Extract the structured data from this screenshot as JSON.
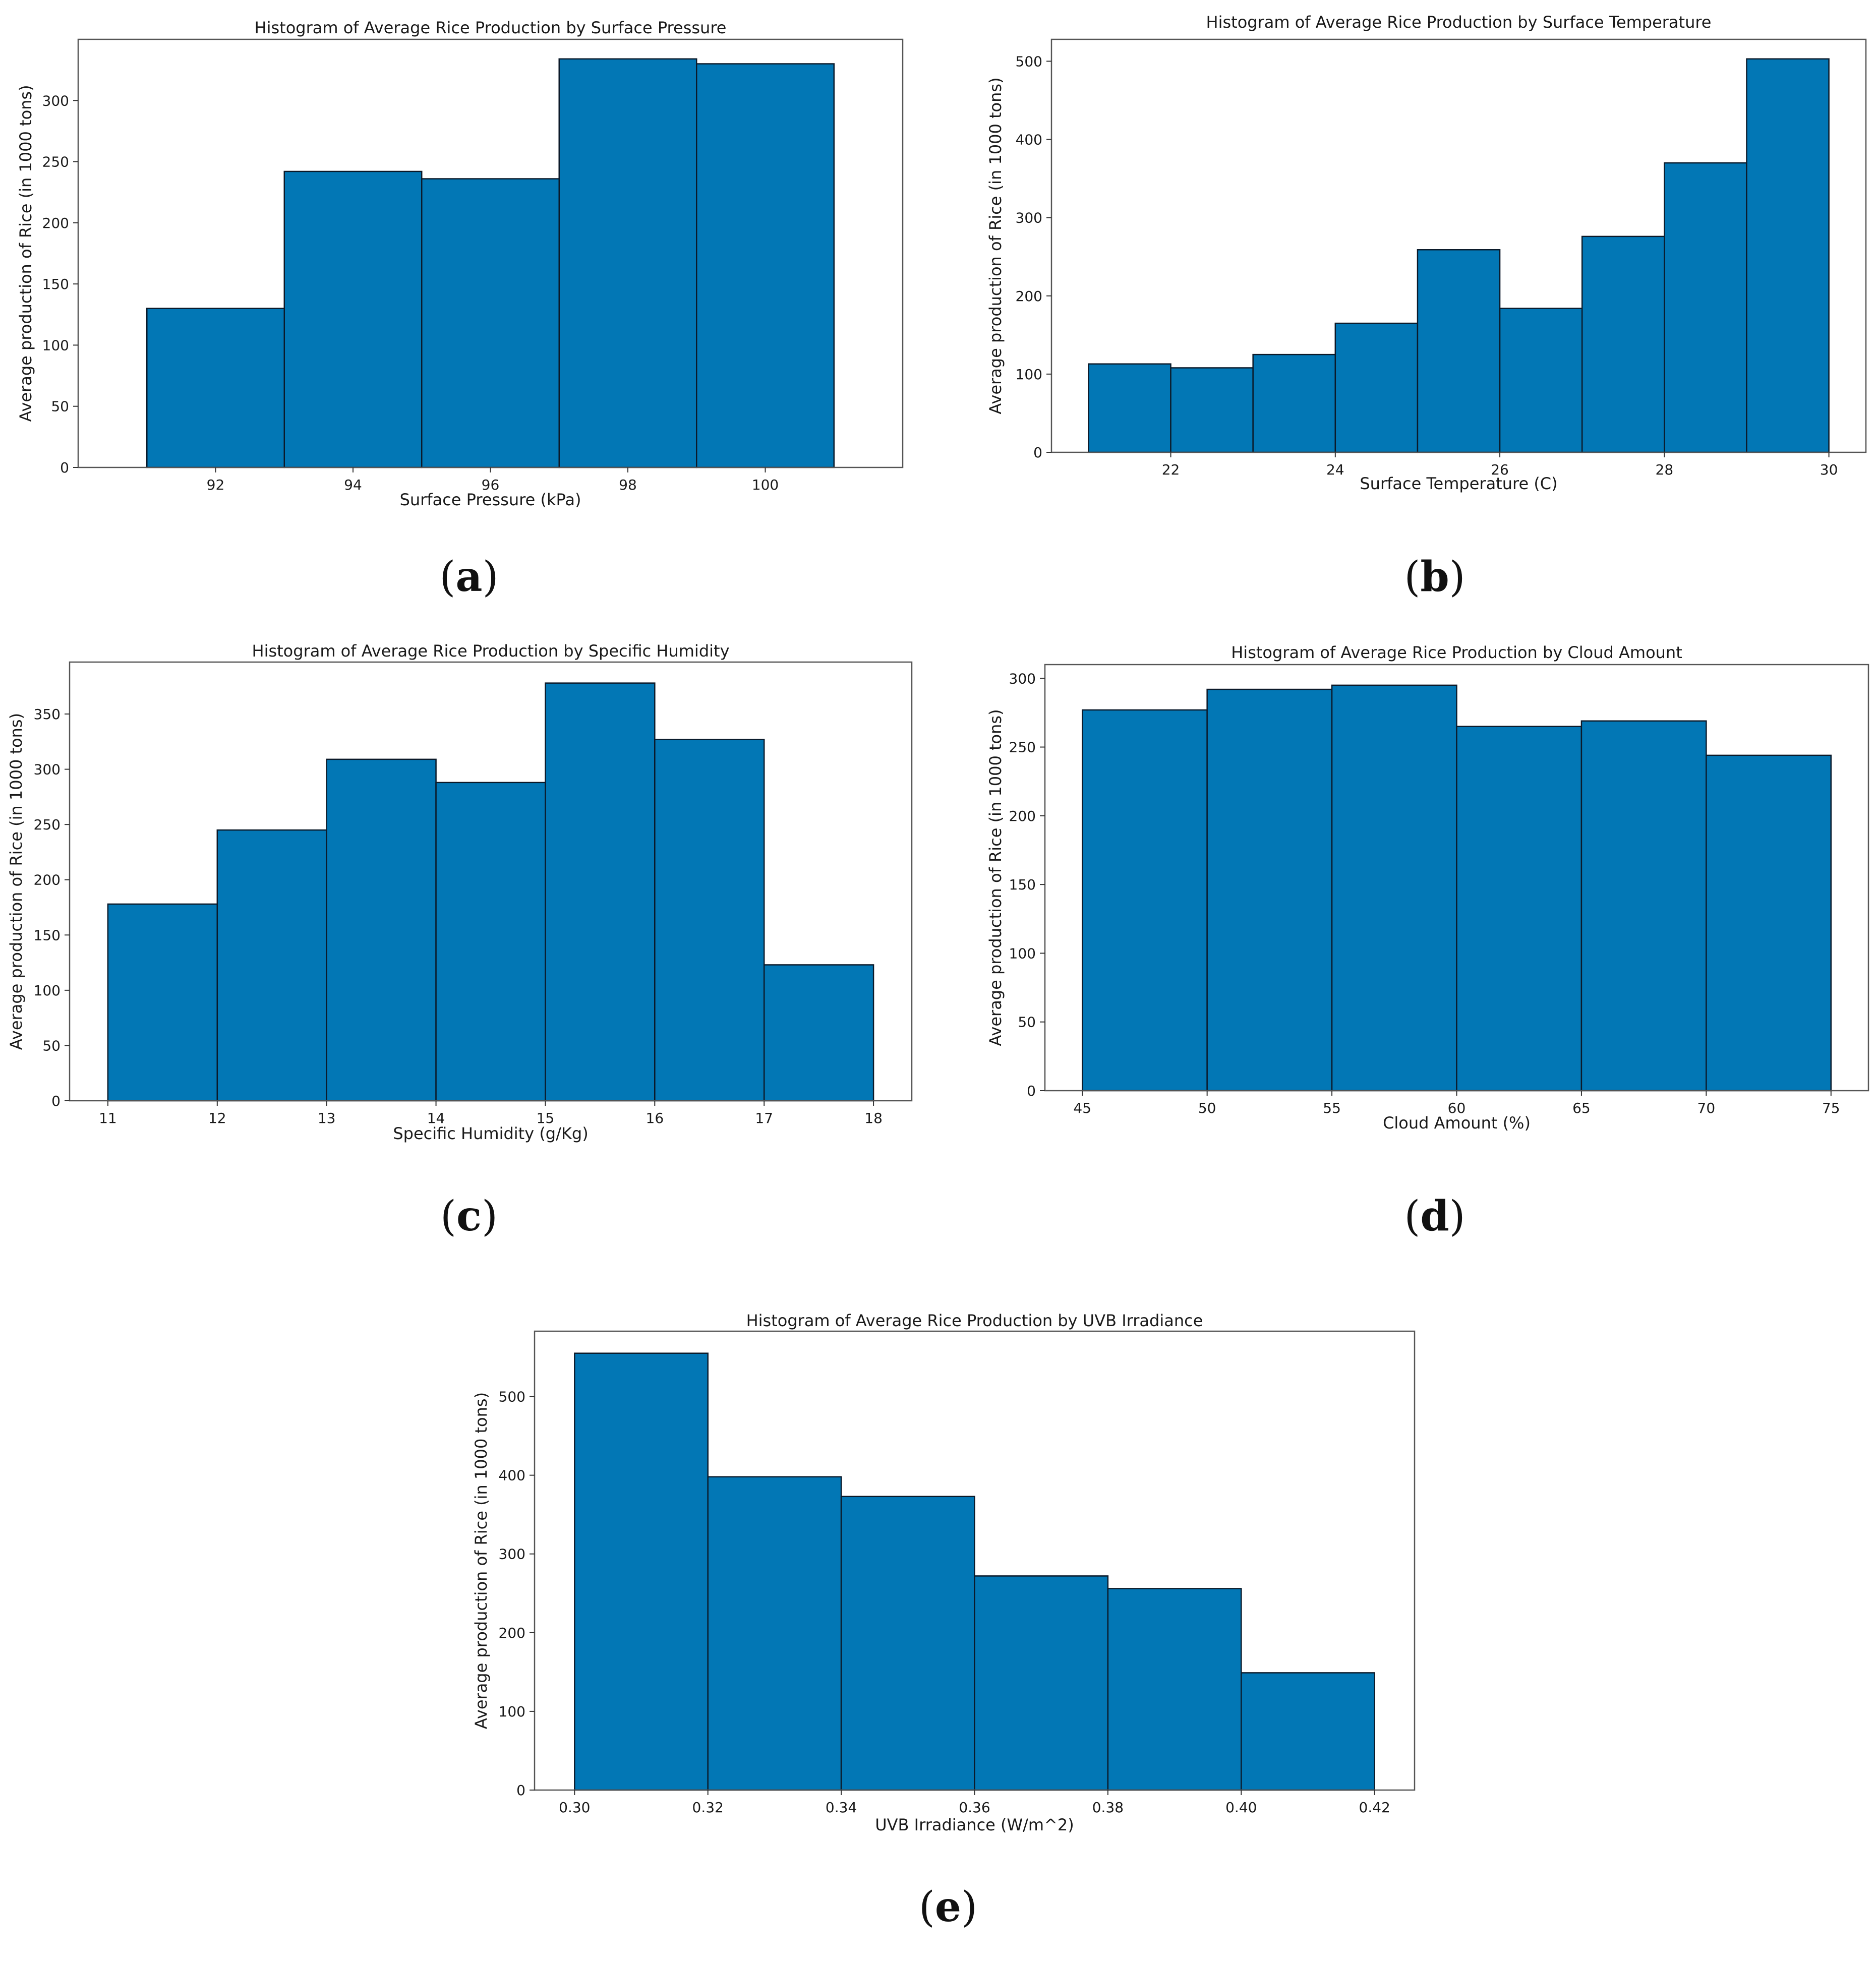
{
  "chart_data": [
    {
      "id": "a",
      "panel_label": "a",
      "type": "bar",
      "title": "Histogram of Average Rice Production by Surface Pressure",
      "xlabel": "Surface Pressure (kPa)",
      "ylabel": "Average production of Rice (in 1000 tons)",
      "bins": [
        [
          91,
          93
        ],
        [
          93,
          95
        ],
        [
          95,
          97
        ],
        [
          97,
          99
        ],
        [
          99,
          101
        ]
      ],
      "values": [
        130,
        242,
        236,
        334,
        330
      ],
      "xlim": [
        90,
        102
      ],
      "ylim": [
        0,
        350
      ],
      "xticks": [
        92,
        94,
        96,
        98,
        100
      ],
      "xtick_labels": [
        "92",
        "94",
        "96",
        "98",
        "100"
      ],
      "yticks": [
        0,
        50,
        100,
        150,
        200,
        250,
        300
      ],
      "ytick_labels": [
        "0",
        "50",
        "100",
        "150",
        "200",
        "250",
        "300"
      ],
      "color": "#0277b5"
    },
    {
      "id": "b",
      "panel_label": "b",
      "type": "bar",
      "title": "Histogram of Average Rice Production by Surface Temperature",
      "xlabel": "Surface Temperature (C)",
      "ylabel": "Average production of Rice (in 1000 tons)",
      "bins": [
        [
          21,
          22
        ],
        [
          22,
          23
        ],
        [
          23,
          24
        ],
        [
          24,
          25
        ],
        [
          25,
          26
        ],
        [
          26,
          27
        ],
        [
          27,
          28
        ],
        [
          28,
          29
        ],
        [
          29,
          30
        ]
      ],
      "values": [
        113,
        108,
        125,
        165,
        259,
        184,
        276,
        370,
        503
      ],
      "xlim": [
        20.55,
        30.45
      ],
      "ylim": [
        0,
        528
      ],
      "xticks": [
        22,
        24,
        26,
        28,
        30
      ],
      "xtick_labels": [
        "22",
        "24",
        "26",
        "28",
        "30"
      ],
      "yticks": [
        0,
        100,
        200,
        300,
        400,
        500
      ],
      "ytick_labels": [
        "0",
        "100",
        "200",
        "300",
        "400",
        "500"
      ],
      "color": "#0277b5"
    },
    {
      "id": "c",
      "panel_label": "c",
      "type": "bar",
      "title": "Histogram of Average Rice Production by Specific Humidity",
      "xlabel": "Specific Humidity (g/Kg)",
      "ylabel": "Average production of Rice (in 1000 tons)",
      "bins": [
        [
          11,
          12
        ],
        [
          12,
          13
        ],
        [
          13,
          14
        ],
        [
          14,
          15
        ],
        [
          15,
          16
        ],
        [
          16,
          17
        ],
        [
          17,
          18
        ]
      ],
      "values": [
        178,
        245,
        309,
        288,
        378,
        327,
        123
      ],
      "xlim": [
        10.65,
        18.35
      ],
      "ylim": [
        0,
        397
      ],
      "xticks": [
        11,
        12,
        13,
        14,
        15,
        16,
        17,
        18
      ],
      "xtick_labels": [
        "11",
        "12",
        "13",
        "14",
        "15",
        "16",
        "17",
        "18"
      ],
      "yticks": [
        0,
        50,
        100,
        150,
        200,
        250,
        300,
        350
      ],
      "ytick_labels": [
        "0",
        "50",
        "100",
        "150",
        "200",
        "250",
        "300",
        "350"
      ],
      "color": "#0277b5"
    },
    {
      "id": "d",
      "panel_label": "d",
      "type": "bar",
      "title": "Histogram of Average Rice Production by Cloud Amount",
      "xlabel": "Cloud Amount (%)",
      "ylabel": "Average production of Rice (in 1000 tons)",
      "bins": [
        [
          45,
          50
        ],
        [
          50,
          55
        ],
        [
          55,
          60
        ],
        [
          60,
          65
        ],
        [
          65,
          70
        ],
        [
          70,
          75
        ]
      ],
      "values": [
        277,
        292,
        295,
        265,
        269,
        244
      ],
      "xlim": [
        43.5,
        76.5
      ],
      "ylim": [
        0,
        310
      ],
      "xticks": [
        45,
        50,
        55,
        60,
        65,
        70,
        75
      ],
      "xtick_labels": [
        "45",
        "50",
        "55",
        "60",
        "65",
        "70",
        "75"
      ],
      "yticks": [
        0,
        50,
        100,
        150,
        200,
        250,
        300
      ],
      "ytick_labels": [
        "0",
        "50",
        "100",
        "150",
        "200",
        "250",
        "300"
      ],
      "color": "#0277b5"
    },
    {
      "id": "e",
      "panel_label": "e",
      "type": "bar",
      "title": "Histogram of Average Rice Production by UVB Irradiance",
      "xlabel": "UVB Irradiance (W/m^2)",
      "ylabel": "Average production of Rice (in 1000 tons)",
      "bins": [
        [
          0.3,
          0.32
        ],
        [
          0.32,
          0.34
        ],
        [
          0.34,
          0.36
        ],
        [
          0.36,
          0.38
        ],
        [
          0.38,
          0.4
        ],
        [
          0.4,
          0.42
        ]
      ],
      "values": [
        555,
        398,
        373,
        272,
        256,
        149
      ],
      "xlim": [
        0.294,
        0.426
      ],
      "ylim": [
        0,
        583
      ],
      "xticks": [
        0.3,
        0.32,
        0.34,
        0.36,
        0.38,
        0.4,
        0.42
      ],
      "xtick_labels": [
        "0.30",
        "0.32",
        "0.34",
        "0.36",
        "0.38",
        "0.40",
        "0.42"
      ],
      "yticks": [
        0,
        100,
        200,
        300,
        400,
        500
      ],
      "ytick_labels": [
        "0",
        "100",
        "200",
        "300",
        "400",
        "500"
      ],
      "color": "#0277b5"
    }
  ]
}
